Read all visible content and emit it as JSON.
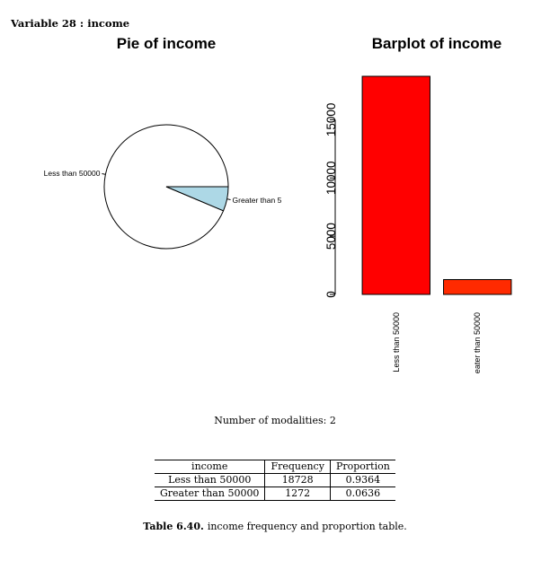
{
  "header": {
    "label": "Variable 28 :",
    "variable": "income"
  },
  "chart_data": [
    {
      "type": "pie",
      "title": "Pie of income",
      "labels": [
        "Less than 50000",
        "Greater than 5"
      ],
      "values": [
        18728,
        1272
      ],
      "colors": [
        "#ffffff",
        "#add8e6"
      ]
    },
    {
      "type": "bar",
      "title": "Barplot of income",
      "categories": [
        "Less than 50000",
        "eater than 50000"
      ],
      "values": [
        18728,
        1272
      ],
      "colors": [
        "#ff0000",
        "#ff2a00"
      ],
      "ylim": [
        0,
        18728
      ],
      "yticks": [
        "0",
        "5000",
        "10000",
        "15000"
      ]
    }
  ],
  "modalities": {
    "label": "Number of modalities:",
    "value": "2"
  },
  "table": {
    "headers": [
      "income",
      "Frequency",
      "Proportion"
    ],
    "rows": [
      [
        "Less than 50000",
        "18728",
        "0.9364"
      ],
      [
        "Greater than 50000",
        "1272",
        "0.0636"
      ]
    ]
  },
  "caption": {
    "number": "Table 6.40.",
    "text": "income frequency and proportion table."
  }
}
